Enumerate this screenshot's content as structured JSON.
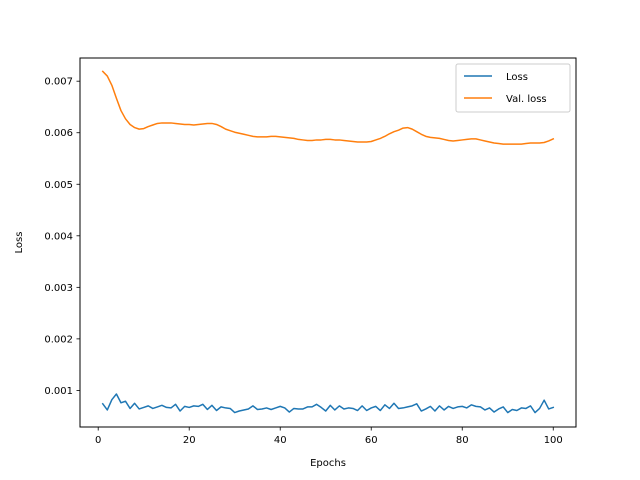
{
  "chart_data": {
    "type": "line",
    "title": "",
    "xlabel": "Epochs",
    "ylabel": "Loss",
    "xlim": [
      -4,
      105
    ],
    "ylim": [
      0.00029,
      0.00745
    ],
    "x_ticks": [
      0,
      20,
      40,
      60,
      80,
      100
    ],
    "x_tick_labels": [
      "0",
      "20",
      "40",
      "60",
      "80",
      "100"
    ],
    "y_ticks": [
      0.001,
      0.002,
      0.003,
      0.004,
      0.005,
      0.006,
      0.007
    ],
    "y_tick_labels": [
      "0.001",
      "0.002",
      "0.003",
      "0.004",
      "0.005",
      "0.006",
      "0.007"
    ],
    "grid": false,
    "legend_position": "top-right",
    "series": [
      {
        "name": "Loss",
        "color": "#1f77b4",
        "x_start": 1,
        "x_step": 1,
        "values": [
          0.00074,
          0.00062,
          0.00082,
          0.00093,
          0.00076,
          0.00079,
          0.00065,
          0.00075,
          0.00064,
          0.00067,
          0.0007,
          0.00065,
          0.00068,
          0.00071,
          0.00067,
          0.00066,
          0.00073,
          0.0006,
          0.00069,
          0.00067,
          0.0007,
          0.00069,
          0.00073,
          0.00063,
          0.00071,
          0.00061,
          0.00068,
          0.00066,
          0.00065,
          0.00057,
          0.0006,
          0.00062,
          0.00064,
          0.0007,
          0.00063,
          0.00064,
          0.00066,
          0.00063,
          0.00066,
          0.00069,
          0.00066,
          0.00058,
          0.00065,
          0.00064,
          0.00064,
          0.00068,
          0.00068,
          0.00073,
          0.00067,
          0.0006,
          0.00071,
          0.00062,
          0.0007,
          0.00064,
          0.00066,
          0.00065,
          0.00061,
          0.0007,
          0.00061,
          0.00066,
          0.00069,
          0.00061,
          0.00072,
          0.00065,
          0.00075,
          0.00065,
          0.00066,
          0.00068,
          0.0007,
          0.00074,
          0.0006,
          0.00064,
          0.00069,
          0.0006,
          0.0007,
          0.00062,
          0.00069,
          0.00065,
          0.00068,
          0.00069,
          0.00066,
          0.00072,
          0.00069,
          0.00068,
          0.00062,
          0.00066,
          0.00058,
          0.00064,
          0.00068,
          0.00057,
          0.00063,
          0.00061,
          0.00066,
          0.00065,
          0.0007,
          0.00057,
          0.00065,
          0.00081,
          0.00064,
          0.00067
        ]
      },
      {
        "name": "Val. loss",
        "color": "#ff7f0e",
        "x_start": 1,
        "x_step": 1,
        "values": [
          0.00719,
          0.0071,
          0.00692,
          0.00667,
          0.00643,
          0.00627,
          0.00616,
          0.0061,
          0.00607,
          0.00608,
          0.00612,
          0.00615,
          0.00618,
          0.00619,
          0.00619,
          0.00619,
          0.00618,
          0.00617,
          0.00616,
          0.00616,
          0.00615,
          0.00616,
          0.00617,
          0.00618,
          0.00618,
          0.00616,
          0.00612,
          0.00607,
          0.00604,
          0.00601,
          0.00599,
          0.00597,
          0.00595,
          0.00593,
          0.00592,
          0.00592,
          0.00592,
          0.00593,
          0.00593,
          0.00592,
          0.00591,
          0.0059,
          0.00589,
          0.00587,
          0.00586,
          0.00585,
          0.00585,
          0.00586,
          0.00586,
          0.00587,
          0.00587,
          0.00586,
          0.00586,
          0.00585,
          0.00584,
          0.00583,
          0.00582,
          0.00582,
          0.00582,
          0.00583,
          0.00586,
          0.00589,
          0.00593,
          0.00598,
          0.00602,
          0.00605,
          0.00609,
          0.0061,
          0.00607,
          0.00602,
          0.00597,
          0.00593,
          0.00591,
          0.0059,
          0.00589,
          0.00587,
          0.00585,
          0.00584,
          0.00585,
          0.00586,
          0.00587,
          0.00588,
          0.00588,
          0.00586,
          0.00584,
          0.00582,
          0.0058,
          0.00579,
          0.00578,
          0.00578,
          0.00578,
          0.00578,
          0.00578,
          0.00579,
          0.0058,
          0.0058,
          0.0058,
          0.00581,
          0.00584,
          0.00588
        ]
      }
    ]
  }
}
